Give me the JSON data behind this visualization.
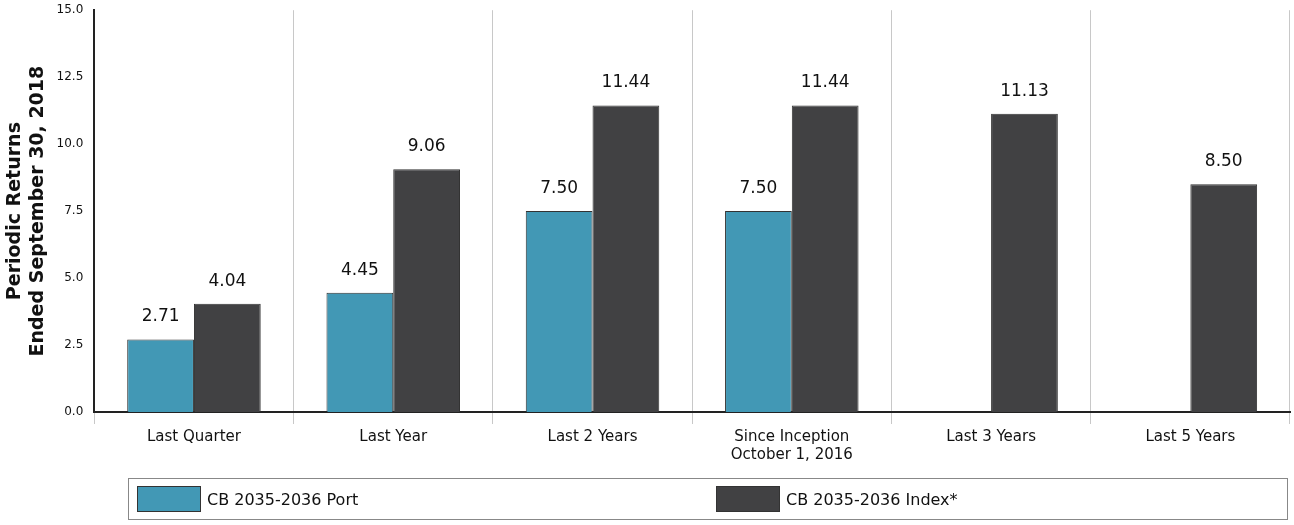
{
  "chart_data": {
    "type": "bar",
    "ylabel": "Periodic Returns\nEnded September 30, 2018",
    "categories": [
      "Last Quarter",
      "Last Year",
      "Last 2 Years",
      "Since Inception\nOctober 1, 2016",
      "Last 3 Years",
      "Last 5 Years"
    ],
    "series": [
      {
        "name": "CB 2035-2036 Port",
        "color": "#4298b5",
        "values": [
          2.71,
          4.45,
          7.5,
          7.5,
          null,
          null
        ],
        "value_labels": [
          "2.71",
          "4.45",
          "7.50",
          "7.50",
          null,
          null
        ]
      },
      {
        "name": "CB 2035-2036 Index*",
        "color": "#414143",
        "values": [
          4.04,
          9.06,
          11.44,
          11.44,
          11.13,
          8.5
        ],
        "value_labels": [
          "4.04",
          "9.06",
          "11.44",
          "11.44",
          "11.13",
          "8.50"
        ]
      }
    ],
    "ylim": [
      0,
      15
    ],
    "yticks": [
      {
        "value": 0,
        "label": "0.0"
      },
      {
        "value": 2.5,
        "label": "2.5"
      },
      {
        "value": 5,
        "label": "5.0"
      },
      {
        "value": 7.5,
        "label": "7.5"
      },
      {
        "value": 10,
        "label": "10.0"
      },
      {
        "value": 12.5,
        "label": "12.5"
      },
      {
        "value": 15,
        "label": "15.0"
      }
    ],
    "grid": "x",
    "legend": "bottom"
  }
}
